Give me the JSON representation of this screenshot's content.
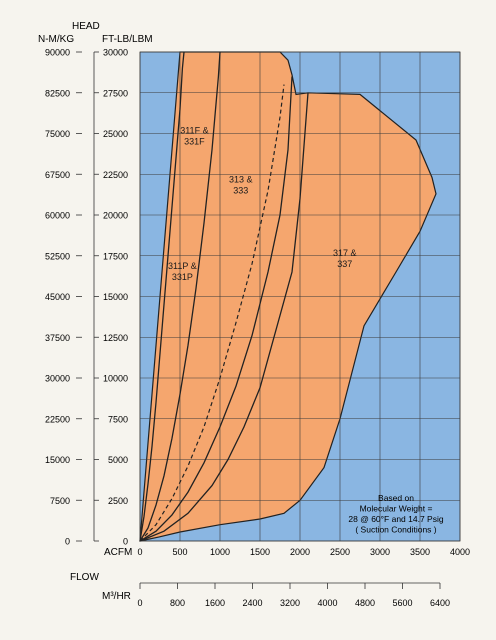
{
  "chart_data": {
    "type": "area",
    "head_label": "HEAD",
    "left_axis": {
      "unit": "N-M/KG",
      "ticks": [
        0,
        7500,
        15000,
        22500,
        30000,
        37500,
        45000,
        52500,
        60000,
        67500,
        75000,
        82500,
        90000
      ]
    },
    "right_axis": {
      "unit": "FT-LB/LBM",
      "ticks": [
        0,
        2500,
        5000,
        7500,
        10000,
        12500,
        15000,
        17500,
        20000,
        22500,
        25000,
        27500,
        30000
      ],
      "range": [
        0,
        30000
      ]
    },
    "x_axis": {
      "unit": "ACFM",
      "ticks": [
        0,
        500,
        1000,
        1500,
        2000,
        2500,
        3000,
        3500,
        4000
      ],
      "range": [
        0,
        4000
      ]
    },
    "flow_label": "FLOW",
    "secondary_x_axis": {
      "unit": "M³/HR",
      "ticks": [
        0,
        800,
        1600,
        2400,
        3200,
        4000,
        4800,
        5600,
        6400
      ]
    },
    "colors": {
      "background": "#8ab6e2",
      "envelope": "#f5a66e",
      "grid": "#3a3a3a",
      "line": "#222222"
    },
    "envelope": {
      "x": [
        0,
        240,
        500,
        1000,
        1500,
        1800,
        2000,
        2300,
        2500,
        2800,
        3200,
        3500,
        3700,
        3650,
        3450,
        2750,
        2100,
        1950,
        1900,
        1850,
        1750,
        550,
        500
      ],
      "y": [
        0,
        250,
        550,
        1000,
        1350,
        1700,
        2500,
        4500,
        7500,
        13200,
        16500,
        19000,
        21300,
        22300,
        24600,
        27400,
        27500,
        27400,
        28600,
        29500,
        30000,
        30000,
        30000
      ]
    },
    "series": [
      {
        "x": [
          0,
          50,
          100,
          150,
          200,
          250,
          300,
          350,
          400,
          450,
          500,
          530,
          550
        ],
        "y": [
          0,
          1500,
          3500,
          5800,
          8500,
          11500,
          14500,
          17500,
          20500,
          23500,
          26500,
          29000,
          30000
        ]
      },
      {
        "x": [
          0,
          100,
          200,
          300,
          400,
          500,
          600,
          700,
          800,
          900,
          980,
          1000
        ],
        "y": [
          0,
          800,
          2200,
          4000,
          6300,
          9000,
          12000,
          15500,
          19500,
          24000,
          28500,
          30000
        ]
      },
      {
        "x": [
          0,
          200,
          400,
          600,
          800,
          1000,
          1200,
          1400,
          1600,
          1750,
          1850,
          1900
        ],
        "y": [
          0,
          600,
          1600,
          3000,
          4800,
          7000,
          9500,
          12600,
          16500,
          20000,
          24000,
          28500
        ]
      },
      {
        "x": [
          0,
          300,
          600,
          900,
          1100,
          1300,
          1500,
          1900,
          2000,
          2100
        ],
        "y": [
          0,
          600,
          1700,
          3400,
          5000,
          7000,
          9400,
          16500,
          21000,
          27500
        ]
      }
    ],
    "dashed_series": {
      "x": [
        0,
        200,
        400,
        600,
        800,
        1000,
        1200,
        1400,
        1600,
        1700,
        1750,
        1800
      ],
      "y": [
        0,
        1000,
        2600,
        4600,
        7000,
        10000,
        13400,
        17000,
        21500,
        24500,
        26000,
        28000
      ]
    },
    "region_labels": [
      {
        "lines": [
          "311F &",
          "331F"
        ],
        "x": 680,
        "y": 25000
      },
      {
        "lines": [
          "313 &",
          "333"
        ],
        "x": 1260,
        "y": 22000
      },
      {
        "lines": [
          "311P &",
          "331P"
        ],
        "x": 530,
        "y": 16700
      },
      {
        "lines": [
          "317 &",
          "337"
        ],
        "x": 2560,
        "y": 17500
      }
    ],
    "note": [
      "Based on",
      "Molecular Weight =",
      "28 @ 60°F  and 14.7 Psig",
      "( Suction Conditions )"
    ],
    "grid": true
  }
}
